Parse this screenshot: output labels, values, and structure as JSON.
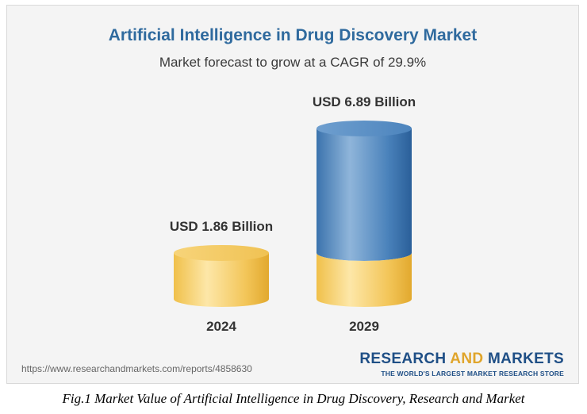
{
  "chart_data": {
    "type": "bar",
    "title": "Artificial Intelligence in Drug Discovery Market",
    "subtitle": "Market forecast to grow at a CAGR of 29.9%",
    "categories": [
      "2024",
      "2029"
    ],
    "values": [
      1.86,
      6.89
    ],
    "data_labels": [
      "USD 1.86 Billion",
      "USD 6.89 Billion"
    ],
    "unit": "USD Billion",
    "grid": false,
    "colors": {
      "base": "#f2c75a",
      "base_light": "#fbe4a2",
      "growth": "#3f7ab5",
      "growth_light": "#8fb8df",
      "title": "#2f6a9e"
    }
  },
  "source": {
    "url": "https://www.researchandmarkets.com/reports/4858630"
  },
  "brand": {
    "name_part1": "RESEARCH ",
    "name_part2": "AND",
    "name_part3": " MARKETS",
    "tagline": "THE WORLD'S LARGEST MARKET RESEARCH STORE"
  },
  "caption": "Fig.1 Market Value of Artificial Intelligence in Drug Discovery, Research and Market"
}
